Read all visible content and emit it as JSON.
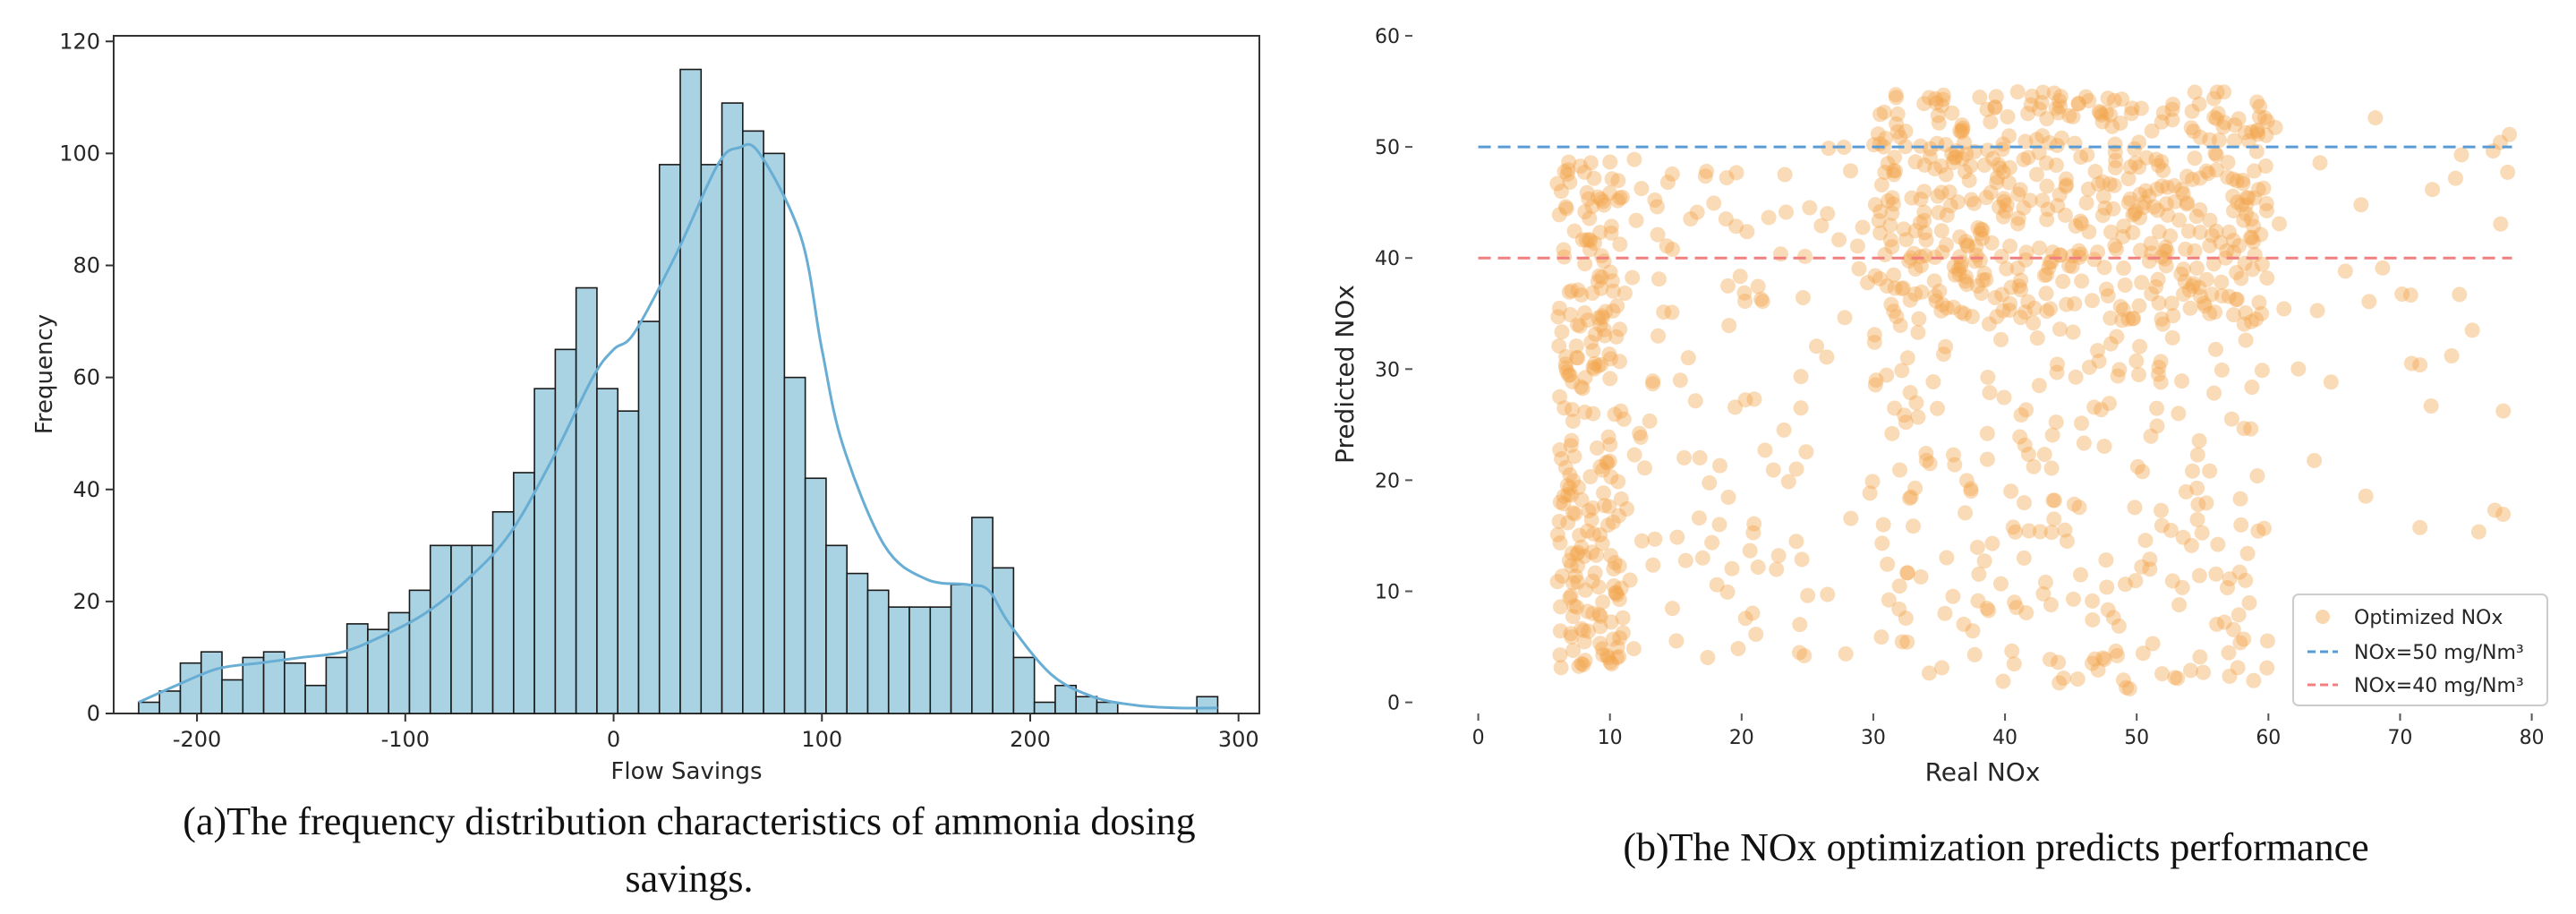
{
  "chart_data": [
    {
      "type": "bar",
      "subtype": "histogram_with_kde",
      "title": "",
      "xlabel": "Flow Savings",
      "ylabel": "Frequency",
      "xlim": [
        -240,
        310
      ],
      "ylim": [
        0,
        121
      ],
      "xticks": [
        -200,
        -100,
        0,
        100,
        200,
        300
      ],
      "yticks": [
        0,
        20,
        40,
        60,
        80,
        100,
        120
      ],
      "bin_edges": [
        -228,
        -218,
        -208,
        -198,
        -188,
        -178,
        -168,
        -158,
        -148,
        -138,
        -128,
        -118,
        -108,
        -98,
        -88,
        -78,
        -68,
        -58,
        -48,
        -38,
        -28,
        -18,
        -8,
        2,
        12,
        22,
        32,
        42,
        52,
        62,
        72,
        82,
        92,
        102,
        112,
        122,
        132,
        142,
        152,
        162,
        172,
        182,
        192,
        202,
        212,
        222,
        232,
        242
      ],
      "values": [
        2,
        4,
        9,
        11,
        6,
        10,
        11,
        9,
        5,
        10,
        16,
        15,
        18,
        22,
        30,
        30,
        30,
        36,
        43,
        58,
        65,
        76,
        58,
        54,
        70,
        98,
        115,
        98,
        109,
        104,
        100,
        60,
        42,
        30,
        25,
        22,
        19,
        19,
        19,
        23,
        35,
        26,
        10,
        2,
        5,
        3,
        2
      ],
      "extra_bins": [
        {
          "x0": 280,
          "x1": 290,
          "value": 3
        }
      ],
      "kde": {
        "x": [
          -228,
          -210,
          -190,
          -170,
          -150,
          -130,
          -110,
          -90,
          -70,
          -50,
          -30,
          -10,
          0,
          10,
          30,
          50,
          60,
          70,
          90,
          100,
          110,
          130,
          150,
          170,
          180,
          190,
          210,
          230,
          250,
          270,
          290
        ],
        "y": [
          2,
          5,
          8,
          9,
          10,
          11,
          14,
          18,
          24,
          32,
          45,
          60,
          65,
          68,
          82,
          98,
          101,
          100,
          85,
          65,
          48,
          30,
          24,
          23,
          22,
          16,
          7,
          3,
          1.5,
          1,
          1
        ]
      },
      "bar_color": "#a9d2e2",
      "kde_color": "#67add4",
      "caption": "(a)The frequency distribution characteristics of ammonia dosing savings."
    },
    {
      "type": "scatter",
      "title": "",
      "xlabel": "Real NOx",
      "ylabel": "Predicted NOx",
      "xlim": [
        -5,
        82
      ],
      "ylim": [
        -1,
        60
      ],
      "xticks": [
        0,
        10,
        20,
        30,
        40,
        50,
        60,
        70,
        80
      ],
      "yticks": [
        0,
        10,
        20,
        30,
        40,
        50,
        60
      ],
      "series": [
        {
          "name": "Optimized NOx",
          "kind": "scatter",
          "color": "#f2a64c",
          "clusters": [
            {
              "x_range": [
                30,
                60
              ],
              "y_range": [
                34,
                55
              ],
              "count": 520
            },
            {
              "x_range": [
                6,
                11
              ],
              "y_range": [
                3,
                49
              ],
              "count": 230
            },
            {
              "x_range": [
                11,
                30
              ],
              "y_range": [
                4,
                50
              ],
              "count": 120
            },
            {
              "x_range": [
                30,
                60
              ],
              "y_range": [
                1,
                34
              ],
              "count": 230
            },
            {
              "x_range": [
                60,
                79
              ],
              "y_range": [
                15,
                54
              ],
              "count": 35
            }
          ]
        },
        {
          "name": "NOx=50 mg/Nm³",
          "kind": "hline",
          "y": 50,
          "x_range": [
            0,
            78.5
          ],
          "color": "#5a9bd5"
        },
        {
          "name": "NOx=40 mg/Nm³",
          "kind": "hline",
          "y": 40,
          "x_range": [
            0,
            78.5
          ],
          "color": "#f08080"
        }
      ],
      "legend_position": "lower-right",
      "legend": [
        "Optimized NOx",
        "NOx=50 mg/Nm³",
        "NOx=40 mg/Nm³"
      ],
      "caption": "(b)The NOx optimization predicts performance"
    }
  ]
}
